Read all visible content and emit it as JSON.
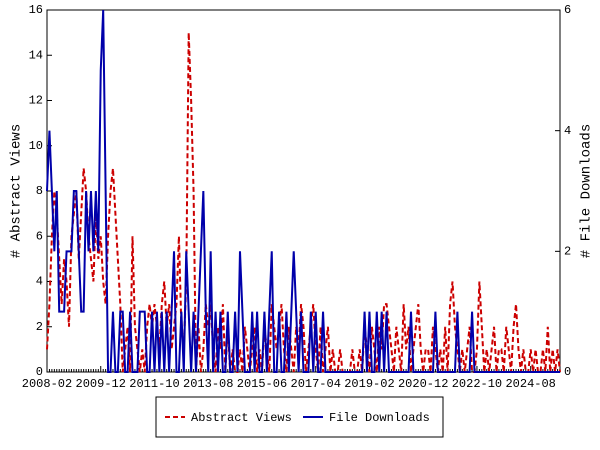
{
  "chart_data": {
    "type": "line",
    "y_label": "# Abstract Views",
    "y2_label": "# File Downloads",
    "categories": [
      "2008-02",
      null,
      null,
      null,
      null,
      null,
      null,
      null,
      null,
      null,
      null,
      null,
      null,
      null,
      null,
      null,
      null,
      null,
      null,
      null,
      null,
      null,
      "2009-12",
      null,
      null,
      null,
      null,
      null,
      null,
      null,
      null,
      null,
      null,
      null,
      null,
      null,
      null,
      null,
      null,
      null,
      null,
      null,
      null,
      null,
      "2011-10",
      null,
      null,
      null,
      null,
      null,
      null,
      null,
      null,
      null,
      null,
      null,
      null,
      null,
      null,
      null,
      null,
      null,
      null,
      null,
      null,
      null,
      "2013-08",
      null,
      null,
      null,
      null,
      null,
      null,
      null,
      null,
      null,
      null,
      null,
      null,
      null,
      null,
      null,
      null,
      null,
      null,
      null,
      null,
      null,
      "2015-06",
      null,
      null,
      null,
      null,
      null,
      null,
      null,
      null,
      null,
      null,
      null,
      null,
      null,
      null,
      null,
      null,
      null,
      null,
      null,
      null,
      null,
      "2017-04",
      null,
      null,
      null,
      null,
      null,
      null,
      null,
      null,
      null,
      null,
      null,
      null,
      null,
      null,
      null,
      null,
      null,
      null,
      null,
      null,
      null,
      "2019-02",
      null,
      null,
      null,
      null,
      null,
      null,
      null,
      null,
      null,
      null,
      null,
      null,
      null,
      null,
      null,
      null,
      null,
      null,
      null,
      null,
      null,
      "2020-12",
      null,
      null,
      null,
      null,
      null,
      null,
      null,
      null,
      null,
      null,
      null,
      null,
      null,
      null,
      null,
      null,
      null,
      null,
      null,
      null,
      null,
      "2022-10",
      null,
      null,
      null,
      null,
      null,
      null,
      null,
      null,
      null,
      null,
      null,
      null,
      null,
      null,
      null,
      null,
      null,
      null,
      null,
      null,
      null,
      "2024-08",
      null,
      null,
      null,
      null,
      null,
      null,
      null,
      null,
      null,
      null,
      null,
      null
    ],
    "series": [
      {
        "name": "Abstract Views",
        "color": "#cc0000",
        "dash": true,
        "axis": "y",
        "values": [
          1,
          3,
          6,
          8,
          7,
          5,
          3,
          5,
          4,
          2,
          6,
          7,
          8,
          5,
          7,
          9,
          8,
          6,
          5,
          4,
          7,
          5,
          6,
          4,
          3,
          6,
          8,
          9,
          7,
          5,
          3,
          0,
          1,
          2,
          0,
          6,
          2,
          1,
          0,
          1,
          0,
          2,
          3,
          2,
          3,
          2,
          1,
          3,
          4,
          2,
          3,
          1,
          2,
          3,
          6,
          2,
          1,
          4,
          15,
          12,
          8,
          0,
          2,
          0,
          1,
          3,
          2,
          3,
          1,
          0,
          2,
          1,
          3,
          0,
          2,
          0,
          1,
          0,
          0,
          1,
          0,
          2,
          1,
          0,
          1,
          2,
          0,
          1,
          0,
          2,
          1,
          0,
          3,
          2,
          1,
          2,
          3,
          1,
          0,
          2,
          1,
          0,
          2,
          1,
          3,
          2,
          0,
          1,
          2,
          3,
          1,
          0,
          2,
          0,
          1,
          2,
          0,
          1,
          0,
          0,
          1,
          0,
          0,
          0,
          0,
          1,
          0,
          0,
          1,
          0,
          2,
          1,
          0,
          2,
          1,
          0,
          2,
          1,
          3,
          3,
          2,
          1,
          0,
          2,
          1,
          0,
          3,
          1,
          2,
          0,
          1,
          2,
          3,
          1,
          0,
          1,
          1,
          0,
          2,
          1,
          0,
          1,
          0,
          2,
          0,
          3,
          4,
          2,
          1,
          0,
          1,
          0,
          1,
          2,
          0,
          0,
          1,
          4,
          2,
          0,
          1,
          0,
          1,
          2,
          0,
          1,
          1,
          0,
          2,
          1,
          0,
          2,
          3,
          1,
          0,
          1,
          0,
          0,
          1,
          0,
          1,
          0,
          0,
          1,
          0,
          2,
          0,
          1,
          0,
          1,
          0
        ]
      },
      {
        "name": "File Downloads",
        "color": "#0000aa",
        "dash": false,
        "axis": "y2",
        "values": [
          3,
          4,
          3,
          2,
          3,
          1,
          1,
          1,
          2,
          2,
          2,
          3,
          3,
          2,
          1,
          1,
          3,
          2,
          3,
          2,
          3,
          2,
          5,
          6,
          3,
          0,
          0,
          1,
          0,
          0,
          1,
          1,
          0,
          0,
          1,
          0,
          0,
          0,
          1,
          1,
          1,
          0,
          0,
          1,
          0,
          1,
          0,
          1,
          0,
          1,
          0,
          1,
          2,
          0,
          0,
          1,
          0,
          2,
          1,
          0,
          1,
          0,
          1,
          2,
          3,
          1,
          0,
          2,
          0,
          1,
          0,
          1,
          0,
          0,
          1,
          0,
          0,
          1,
          0,
          2,
          1,
          0,
          0,
          0,
          1,
          0,
          1,
          0,
          0,
          1,
          0,
          1,
          2,
          0,
          0,
          1,
          0,
          0,
          1,
          0,
          1,
          2,
          1,
          0,
          1,
          0,
          0,
          0,
          1,
          0,
          1,
          0,
          0,
          1,
          0,
          0,
          0,
          0,
          0,
          0,
          0,
          0,
          0,
          0,
          0,
          0,
          0,
          0,
          0,
          0,
          1,
          0,
          1,
          0,
          0,
          1,
          0,
          1,
          0,
          1,
          0,
          0,
          0,
          0,
          0,
          0,
          0,
          0,
          0,
          1,
          0,
          0,
          0,
          0,
          0,
          0,
          0,
          0,
          0,
          1,
          0,
          0,
          0,
          0,
          0,
          0,
          0,
          0,
          1,
          0,
          0,
          0,
          0,
          0,
          1,
          0,
          0,
          0,
          0,
          0,
          0,
          0,
          0,
          0,
          0,
          0,
          0,
          0,
          0,
          0,
          0,
          0,
          0,
          0,
          0,
          0,
          0,
          0,
          0,
          0,
          0,
          0,
          0,
          0,
          0,
          0,
          0,
          0,
          0,
          0,
          0
        ]
      }
    ],
    "ylim": [
      0,
      16
    ],
    "yticks": [
      0,
      2,
      4,
      6,
      8,
      10,
      12,
      14,
      16
    ],
    "y2lim": [
      0,
      6
    ],
    "y2ticks": [
      0,
      2,
      4,
      6
    ],
    "legend": "bottom"
  }
}
